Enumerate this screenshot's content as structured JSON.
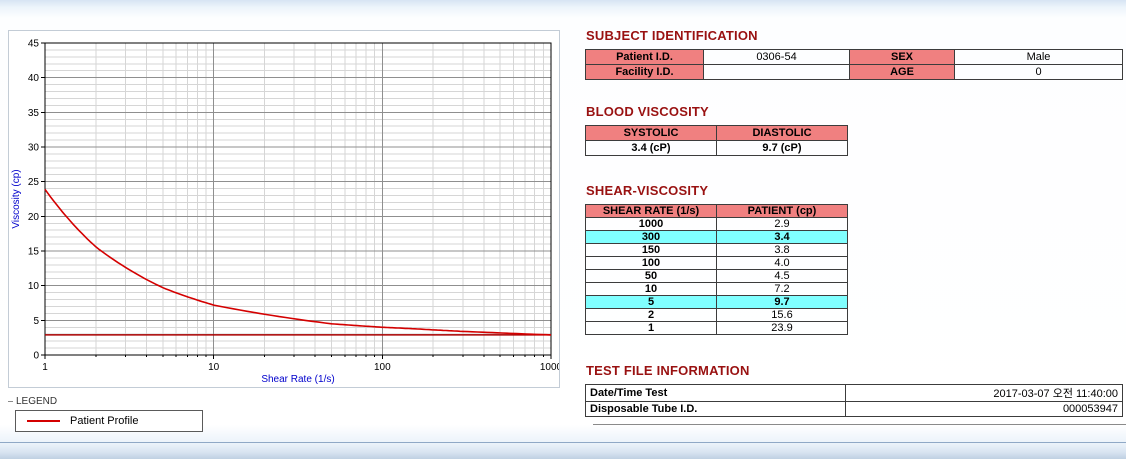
{
  "chart_data": {
    "type": "line",
    "title": "",
    "xlabel": "Shear Rate (1/s)",
    "ylabel": "Viscosity (cp)",
    "x_scale": "log",
    "xlim": [
      1,
      1000
    ],
    "ylim": [
      0,
      45
    ],
    "x_ticks": [
      1,
      10,
      100,
      1000
    ],
    "y_major_step": 5,
    "y_minor_step": 1,
    "grid": true,
    "axis_label_color": "#0000cc",
    "series": [
      {
        "name": "Patient Profile",
        "color": "#d40000",
        "x": [
          1,
          2,
          5,
          10,
          50,
          100,
          150,
          300,
          1000
        ],
        "y": [
          23.9,
          15.6,
          9.7,
          7.2,
          4.5,
          4.0,
          3.8,
          3.4,
          2.9
        ]
      }
    ],
    "reference_line": {
      "y": 2.9,
      "color": "#aa0000"
    },
    "legend": {
      "title": "LEGEND",
      "position": "bottom-left",
      "entries": [
        {
          "label": "Patient Profile",
          "color": "#d40000"
        }
      ]
    }
  },
  "sections": {
    "subject": {
      "title": "SUBJECT IDENTIFICATION",
      "rows": [
        {
          "label1": "Patient I.D.",
          "value1": "0306-54",
          "label2": "SEX",
          "value2": "Male"
        },
        {
          "label1": "Facility I.D.",
          "value1": "",
          "label2": "AGE",
          "value2": "0"
        }
      ]
    },
    "blood_viscosity": {
      "title": "BLOOD VISCOSITY",
      "headers": [
        "SYSTOLIC",
        "DIASTOLIC"
      ],
      "values": [
        "3.4 (cP)",
        "9.7 (cP)"
      ]
    },
    "shear_viscosity": {
      "title": "SHEAR-VISCOSITY",
      "headers": [
        "SHEAR RATE (1/s)",
        "PATIENT (cp)"
      ],
      "rows": [
        {
          "rate": "1000",
          "value": "2.9",
          "highlight": false
        },
        {
          "rate": "300",
          "value": "3.4",
          "highlight": true
        },
        {
          "rate": "150",
          "value": "3.8",
          "highlight": false
        },
        {
          "rate": "100",
          "value": "4.0",
          "highlight": false
        },
        {
          "rate": "50",
          "value": "4.5",
          "highlight": false
        },
        {
          "rate": "10",
          "value": "7.2",
          "highlight": false
        },
        {
          "rate": "5",
          "value": "9.7",
          "highlight": true
        },
        {
          "rate": "2",
          "value": "15.6",
          "highlight": false
        },
        {
          "rate": "1",
          "value": "23.9",
          "highlight": false
        }
      ]
    },
    "test_file": {
      "title": "TEST FILE INFORMATION",
      "rows": [
        {
          "label": "Date/Time Test",
          "value": "2017-03-07 오전 11:40:00"
        },
        {
          "label": "Disposable Tube I.D.",
          "value": "000053947"
        }
      ]
    }
  },
  "colors": {
    "section_heading": "#991111",
    "table_header_bg": "#f08080",
    "highlight_bg": "#80ffff",
    "series_red": "#d40000",
    "axis_label_blue": "#0000cc"
  }
}
